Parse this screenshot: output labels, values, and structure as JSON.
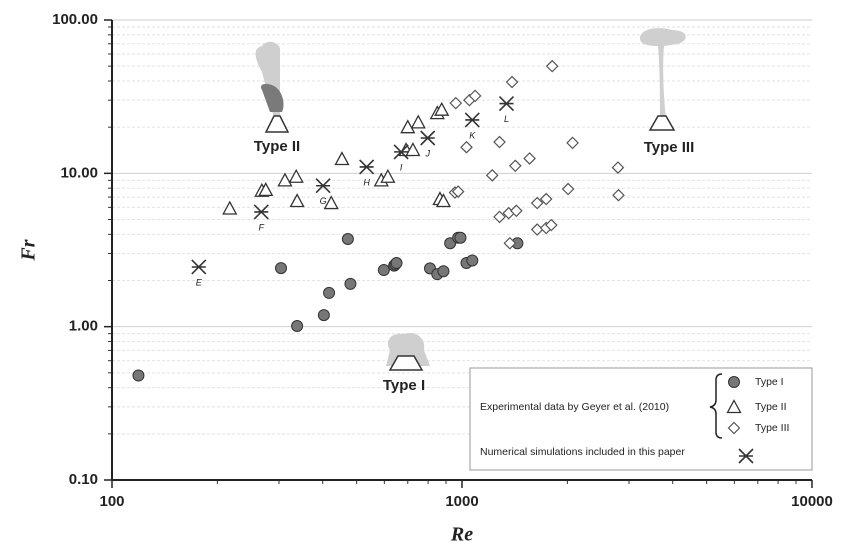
{
  "chart_data": {
    "type": "scatter",
    "x_label": "Re",
    "y_label": "Fr",
    "log_x": true,
    "log_y": true,
    "grid": true,
    "xlim": [
      100,
      10000
    ],
    "xticks": [
      100,
      1000,
      10000
    ],
    "ylim": [
      0.1,
      100
    ],
    "yticks": [
      {
        "value": 0.1,
        "label": "0.10"
      },
      {
        "value": 1,
        "label": "1.00"
      },
      {
        "value": 10,
        "label": "10.00"
      },
      {
        "value": 100,
        "label": "100.00"
      }
    ],
    "legend_group_title": "Experimental data by Geyer et al. (2010)",
    "legend_position": "lower right",
    "annotations": [
      "Type I",
      "Type II",
      "Type III"
    ],
    "series": [
      {
        "name": "Type I",
        "marker": "circle",
        "color": "#777777",
        "x": [
          119,
          304,
          338,
          417,
          403,
          472,
          480,
          598,
          640,
          645,
          650,
          810,
          850,
          885,
          925,
          975,
          990,
          1030,
          1070,
          1440
        ],
        "values": [
          0.48,
          2.41,
          1.01,
          1.66,
          1.19,
          3.73,
          1.9,
          2.34,
          2.5,
          2.55,
          2.6,
          2.4,
          2.2,
          2.3,
          3.5,
          3.8,
          3.8,
          2.6,
          2.7,
          3.5
        ]
      },
      {
        "name": "Type II",
        "marker": "triangle",
        "color": "#333333",
        "x": [
          217,
          268,
          275,
          312,
          336,
          338,
          423,
          454,
          588,
          614,
          692,
          724,
          700,
          750,
          850,
          875,
          865,
          885
        ],
        "values": [
          5.9,
          7.7,
          7.8,
          9.0,
          9.5,
          6.6,
          6.4,
          12.4,
          9.0,
          9.5,
          14.2,
          14.2,
          20,
          21.5,
          24.7,
          26,
          6.8,
          6.6
        ]
      },
      {
        "name": "Type III",
        "marker": "diamond",
        "color": "#555555",
        "x": [
          960,
          1050,
          1090,
          1030,
          1280,
          1420,
          1560,
          1220,
          1390,
          1810,
          955,
          975,
          1280,
          1360,
          1430,
          1370,
          1640,
          1740,
          1800,
          1640,
          1740,
          2070,
          2010,
          2790,
          2800
        ],
        "values": [
          28.7,
          30,
          32,
          14.8,
          16,
          11.2,
          12.5,
          9.7,
          39.4,
          50,
          7.5,
          7.6,
          5.2,
          5.5,
          5.7,
          3.5,
          4.3,
          4.4,
          4.6,
          6.4,
          6.8,
          15.8,
          7.9,
          10.9,
          7.2
        ]
      },
      {
        "name": "Numerical simulations included in this paper",
        "marker": "asterisk",
        "color": "#333333",
        "x": [
          177,
          267,
          401,
          534,
          670,
          798,
          1070,
          1340
        ],
        "values": [
          2.45,
          5.6,
          8.3,
          11.0,
          13.8,
          17,
          22.3,
          28.5
        ],
        "point_labels": [
          "E",
          "F",
          "G",
          "H",
          "I",
          "J",
          "K",
          "L"
        ]
      }
    ]
  }
}
